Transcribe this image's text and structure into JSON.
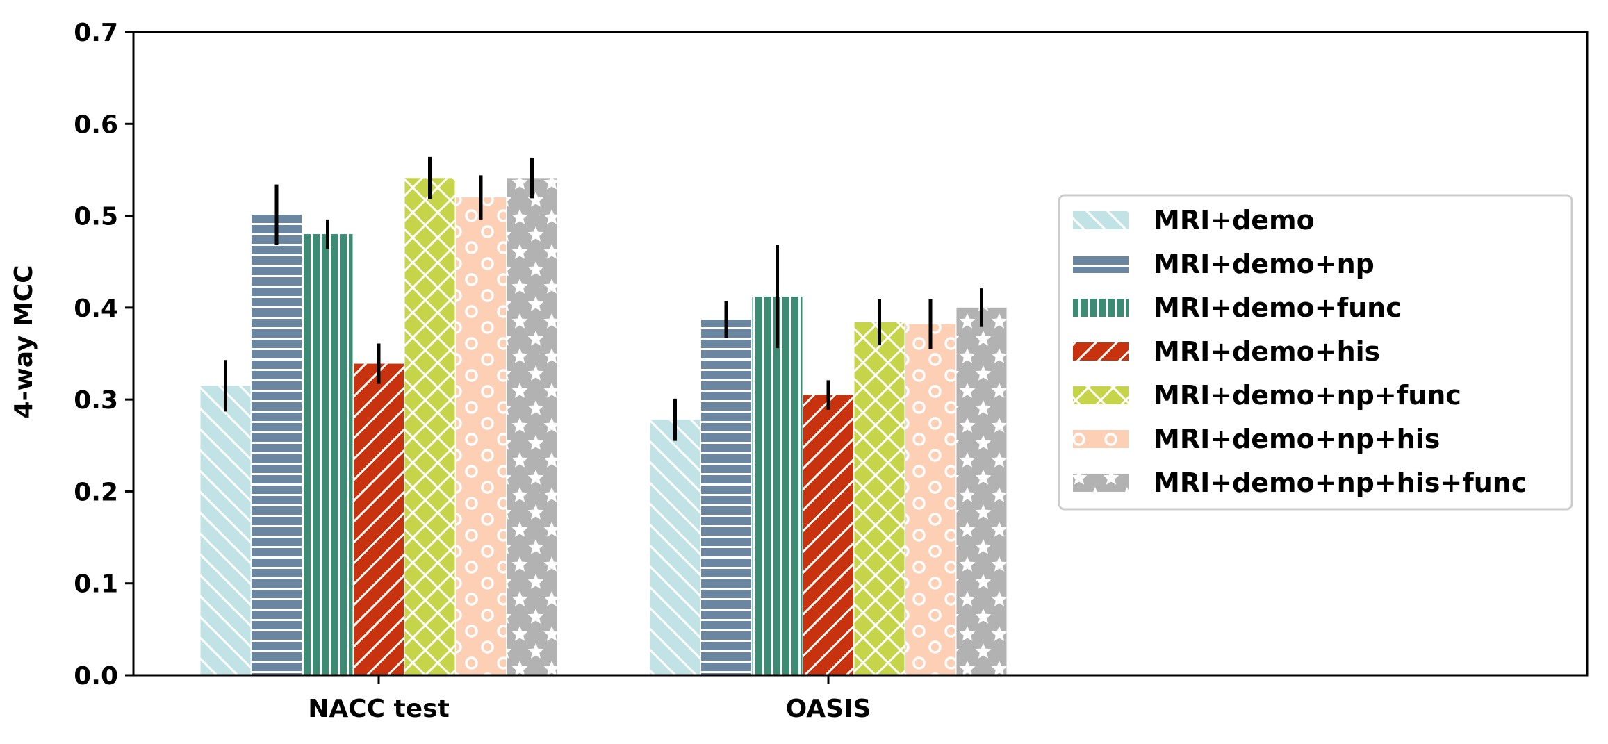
{
  "chart_data": {
    "type": "bar",
    "ylabel": "4-way MCC",
    "xlabel": "",
    "ylim": [
      0,
      0.7
    ],
    "yticks": [
      "0.0",
      "0.1",
      "0.2",
      "0.3",
      "0.4",
      "0.5",
      "0.6",
      "0.7"
    ],
    "categories": [
      "NACC test",
      "OASIS"
    ],
    "legend_position": "center-right",
    "series": [
      {
        "name": "MRI+demo",
        "color": "#c2e3e5",
        "pattern": "diag-back",
        "values": [
          0.315,
          0.278
        ],
        "errors": [
          0.028,
          0.023
        ]
      },
      {
        "name": "MRI+demo+np",
        "color": "#6b86a0",
        "pattern": "horizontal",
        "values": [
          0.501,
          0.387
        ],
        "errors": [
          0.033,
          0.02
        ]
      },
      {
        "name": "MRI+demo+func",
        "color": "#3c8b73",
        "pattern": "vertical",
        "values": [
          0.48,
          0.412
        ],
        "errors": [
          0.016,
          0.056
        ]
      },
      {
        "name": "MRI+demo+his",
        "color": "#c6330e",
        "pattern": "diag-fwd",
        "values": [
          0.339,
          0.305
        ],
        "errors": [
          0.022,
          0.016
        ]
      },
      {
        "name": "MRI+demo+np+func",
        "color": "#c5d448",
        "pattern": "cross",
        "values": [
          0.541,
          0.384
        ],
        "errors": [
          0.023,
          0.025
        ]
      },
      {
        "name": "MRI+demo+np+his",
        "color": "#fdcfb5",
        "pattern": "circles",
        "values": [
          0.52,
          0.382
        ],
        "errors": [
          0.024,
          0.027
        ]
      },
      {
        "name": "MRI+demo+np+his+func",
        "color": "#b2b2b2",
        "pattern": "stars",
        "values": [
          0.541,
          0.4
        ],
        "errors": [
          0.022,
          0.021
        ]
      }
    ]
  }
}
